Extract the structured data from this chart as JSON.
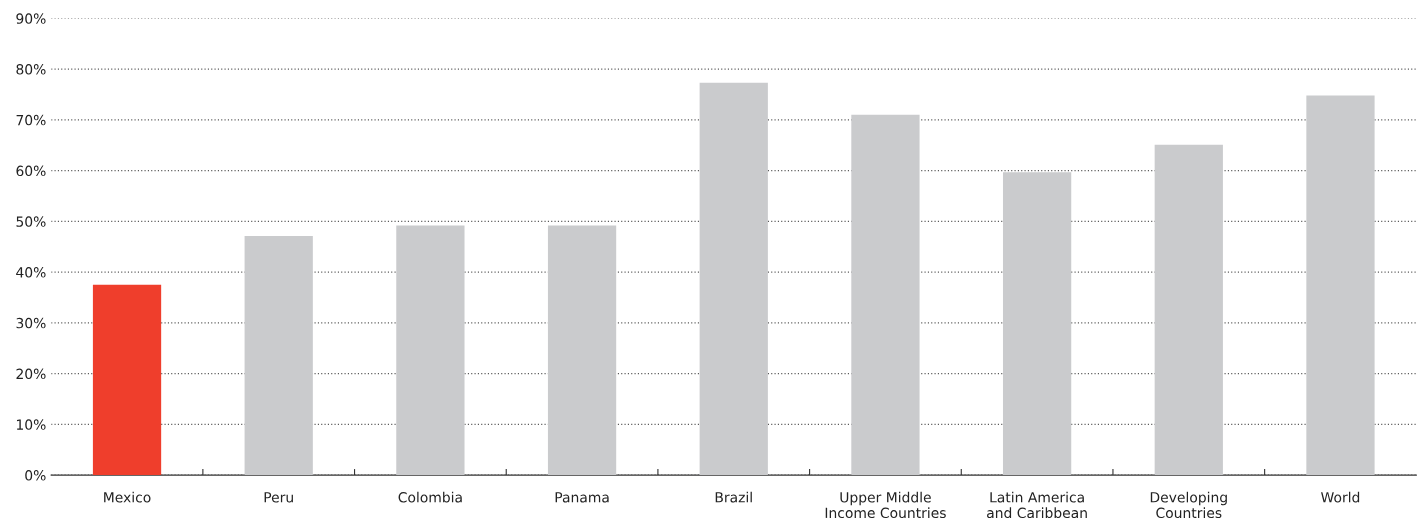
{
  "chart_data": {
    "type": "bar",
    "categories": [
      "Mexico",
      "Peru",
      "Colombia",
      "Panama",
      "Brazil",
      "Upper Middle\nIncome Countries",
      "Latin America\nand Caribbean",
      "Developing\nCountries",
      "World"
    ],
    "values": [
      37.5,
      47.1,
      49.2,
      49.2,
      77.3,
      71.0,
      59.7,
      65.1,
      74.8
    ],
    "colors": [
      "#ef3e2c",
      "#cacbcd",
      "#cacbcd",
      "#cacbcd",
      "#cacbcd",
      "#cacbcd",
      "#cacbcd",
      "#cacbcd",
      "#cacbcd"
    ],
    "ylim": [
      0,
      90
    ],
    "yticks": [
      {
        "value": 0,
        "label": "0%"
      },
      {
        "value": 10,
        "label": "10%"
      },
      {
        "value": 20,
        "label": "20%"
      },
      {
        "value": 30,
        "label": "30%"
      },
      {
        "value": 40,
        "label": "40%"
      },
      {
        "value": 50,
        "label": "50%"
      },
      {
        "value": 60,
        "label": "60%"
      },
      {
        "value": 70,
        "label": "70%"
      },
      {
        "value": 80,
        "label": "80%"
      },
      {
        "value": 90,
        "label": "90%"
      }
    ],
    "grid": "y",
    "legend": false
  }
}
